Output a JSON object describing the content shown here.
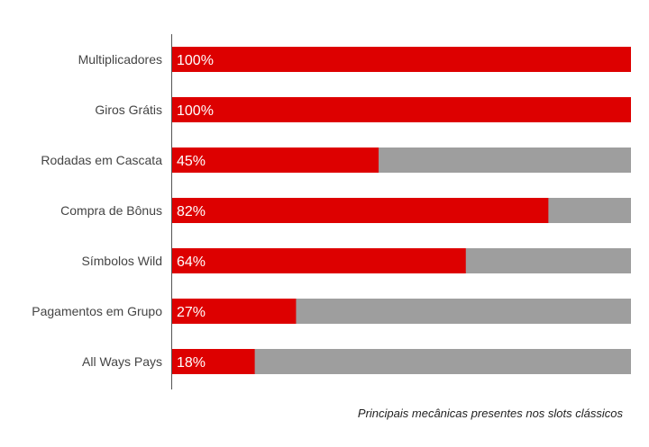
{
  "chart_data": {
    "type": "bar",
    "orientation": "horizontal",
    "stacked_to_total": true,
    "categories": [
      "Multiplicadores",
      "Giros Grátis",
      "Rodadas em Cascata",
      "Compra de Bônus",
      "Símbolos Wild",
      "Pagamentos em Grupo",
      "All Ways Pays"
    ],
    "values": [
      100,
      100,
      45,
      82,
      64,
      27,
      18
    ],
    "value_labels": [
      "100%",
      "100%",
      "45%",
      "82%",
      "64%",
      "27%",
      "18%"
    ],
    "xlim": [
      0,
      100
    ],
    "unit": "%",
    "grid": false,
    "legend": "none",
    "colors": {
      "bar": "#dd0000",
      "remainder": "#9e9e9e",
      "axis": "#555555"
    }
  },
  "caption": "Principais mecânicas presentes nos slots clássicos"
}
